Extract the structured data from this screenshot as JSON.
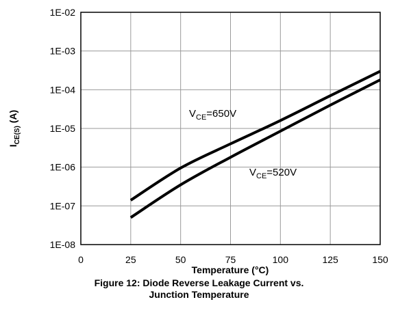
{
  "chart_data": {
    "type": "line",
    "xlabel": "Temperature (°C)",
    "ylabel_main": "I",
    "ylabel_sub": "CE(S)",
    "ylabel_unit": " (A)",
    "xlim": [
      0,
      150
    ],
    "ylim": [
      1e-08,
      0.01
    ],
    "yscale": "log",
    "grid": true,
    "x_ticks": [
      0,
      25,
      50,
      75,
      100,
      125,
      150
    ],
    "x_tick_labels": [
      "0",
      "25",
      "50",
      "75",
      "100",
      "125",
      "150"
    ],
    "y_ticks": [
      1e-08,
      1e-07,
      1e-06,
      1e-05,
      0.0001,
      0.001,
      0.01
    ],
    "y_tick_labels": [
      "1E-08",
      "1E-07",
      "1E-06",
      "1E-05",
      "1E-04",
      "1E-03",
      "1E-02"
    ],
    "series": [
      {
        "annotation_main": "V",
        "annotation_sub": "CE",
        "annotation_rest": "=650V",
        "x": [
          25,
          50,
          75,
          100,
          125,
          150
        ],
        "y": [
          1.4e-07,
          9.5e-07,
          4e-06,
          1.6e-05,
          7e-05,
          0.0003
        ]
      },
      {
        "annotation_main": "V",
        "annotation_sub": "CE",
        "annotation_rest": "=520V",
        "x": [
          25,
          50,
          75,
          100,
          125,
          150
        ],
        "y": [
          5e-08,
          3.5e-07,
          1.8e-06,
          8.5e-06,
          4e-05,
          0.00018
        ]
      }
    ]
  },
  "caption": {
    "line1": "Figure 12: Diode Reverse Leakage Current vs.",
    "line2": "Junction Temperature"
  }
}
